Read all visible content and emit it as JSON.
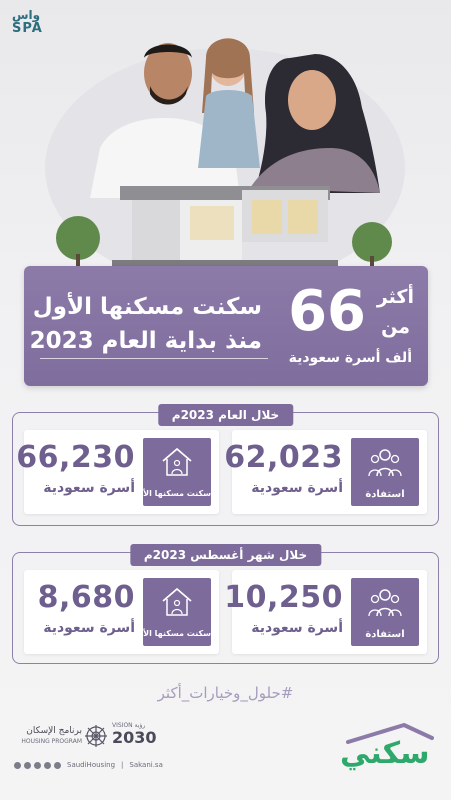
{
  "spa_logo": {
    "arabic": "واس",
    "latin": "SPA"
  },
  "banner": {
    "prefix_top": "أكثر",
    "prefix_bottom": "من",
    "big_number": "66",
    "suffix": "ألف أسرة سعودية",
    "line1": "سكنت مسكنها الأول",
    "line2": "منذ بداية العام 2023"
  },
  "year_section": {
    "label": "خلال العام 2023م",
    "benefit_card": {
      "number": "62,023",
      "sub": "أسرة سعودية",
      "tag": "استفادة",
      "icon": "family-icon"
    },
    "home_card": {
      "number": "66,230",
      "sub": "أسرة سعودية",
      "tag": "سكنت مسكنها الأول",
      "icon": "house-icon"
    }
  },
  "august_section": {
    "label": "خلال شهر أغسطس 2023م",
    "benefit_card": {
      "number": "10,250",
      "sub": "أسرة سعودية",
      "tag": "استفادة",
      "icon": "family-icon"
    },
    "home_card": {
      "number": "8,680",
      "sub": "أسرة سعودية",
      "tag": "سكنت مسكنها الأول",
      "icon": "house-icon"
    }
  },
  "hashtag": "#حلول_وخيارات_أكثر",
  "footer": {
    "sakani_logo": "سكني",
    "program_ar": "برنامج الإسكان",
    "program_en": "HOUSING PROGRAM",
    "vision_label": "VISION",
    "vision_ar": "رؤية",
    "vision_year": "2030",
    "social_handle": "SaudiHousing",
    "website": "Sakani.sa"
  },
  "colors": {
    "purple": "#7c6b9b",
    "purple_light": "#8c7ba9",
    "number_text": "#6e5f8e",
    "sakani_green": "#2fa86b",
    "spa_teal": "#2c6e7d"
  }
}
